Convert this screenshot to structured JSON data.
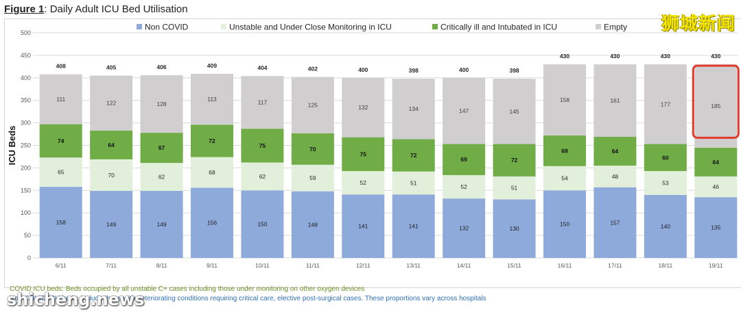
{
  "figure": {
    "label": "Figure 1",
    "title": ": Daily Adult ICU Bed Utilisation"
  },
  "watermark_top": "狮城新闻",
  "watermark_bottom": "shicheng.news",
  "notes": {
    "line1": "COVID ICU beds: Beds occupied by all unstable C+ cases including those under monitoring on other oxygen devices",
    "line2": "Non-COVID ICU beds: Include those with deteriorating conditions requiring critical care, elective post-surgical cases. These proportions vary across hospitals"
  },
  "colors": {
    "non_covid": "#8eaadb",
    "unstable": "#e2efda",
    "critical": "#70ad47",
    "empty": "#d0cece",
    "highlight": "#e23b2e"
  },
  "chart_data": {
    "type": "bar",
    "stacked": true,
    "title": "Daily Adult ICU Bed Utilisation",
    "ylabel": "ICU Beds",
    "xlabel": "",
    "ylim": [
      0,
      500
    ],
    "yticks": [
      0,
      50,
      100,
      150,
      200,
      250,
      300,
      350,
      400,
      450,
      500
    ],
    "categories": [
      "6/11",
      "7/11",
      "8/11",
      "9/11",
      "10/11",
      "11/11",
      "12/11",
      "13/11",
      "14/11",
      "15/11",
      "16/11",
      "17/11",
      "18/11",
      "19/11"
    ],
    "series": [
      {
        "name": "Non COVID",
        "key": "non_covid",
        "values": [
          158,
          149,
          149,
          156,
          150,
          148,
          141,
          141,
          132,
          130,
          150,
          157,
          140,
          135
        ]
      },
      {
        "name": "Unstable and Under Close Monitoring in ICU",
        "key": "unstable",
        "values": [
          65,
          70,
          62,
          68,
          62,
          59,
          52,
          51,
          52,
          51,
          54,
          48,
          53,
          46
        ]
      },
      {
        "name": "Critically ill and Intubated in ICU",
        "key": "critical",
        "values": [
          74,
          64,
          67,
          72,
          75,
          70,
          75,
          72,
          69,
          72,
          68,
          64,
          60,
          64
        ]
      },
      {
        "name": "Empty",
        "key": "empty",
        "values": [
          111,
          122,
          128,
          113,
          117,
          125,
          132,
          134,
          147,
          145,
          158,
          161,
          177,
          185
        ]
      }
    ],
    "totals": [
      408,
      405,
      406,
      409,
      404,
      402,
      400,
      398,
      400,
      398,
      430,
      430,
      430,
      430
    ],
    "highlighted_category": "19/11",
    "legend_position": "top"
  }
}
